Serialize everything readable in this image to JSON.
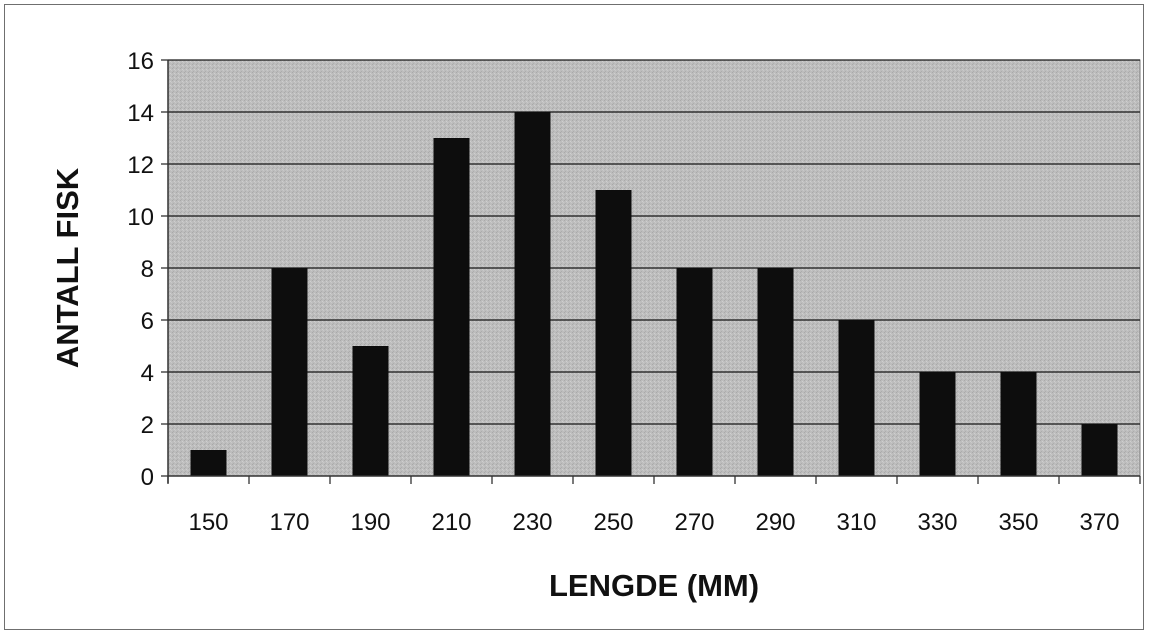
{
  "chart_data": {
    "type": "bar",
    "categories": [
      "150",
      "170",
      "190",
      "210",
      "230",
      "250",
      "270",
      "290",
      "310",
      "330",
      "350",
      "370"
    ],
    "values": [
      1,
      8,
      5,
      13,
      14,
      11,
      8,
      8,
      6,
      4,
      4,
      2
    ],
    "title": "",
    "xlabel": "LENGDE (MM)",
    "ylabel": "ANTALL FISK",
    "ylim": [
      0,
      16
    ],
    "yticks": [
      0,
      2,
      4,
      6,
      8,
      10,
      12,
      14,
      16
    ],
    "grid": true,
    "legend": "none",
    "colors": {
      "bar": "#0d0d0d",
      "plot_background": "#bdbdbd",
      "gridline": "#1a1a1a",
      "frame": "#6f6f6f"
    }
  }
}
